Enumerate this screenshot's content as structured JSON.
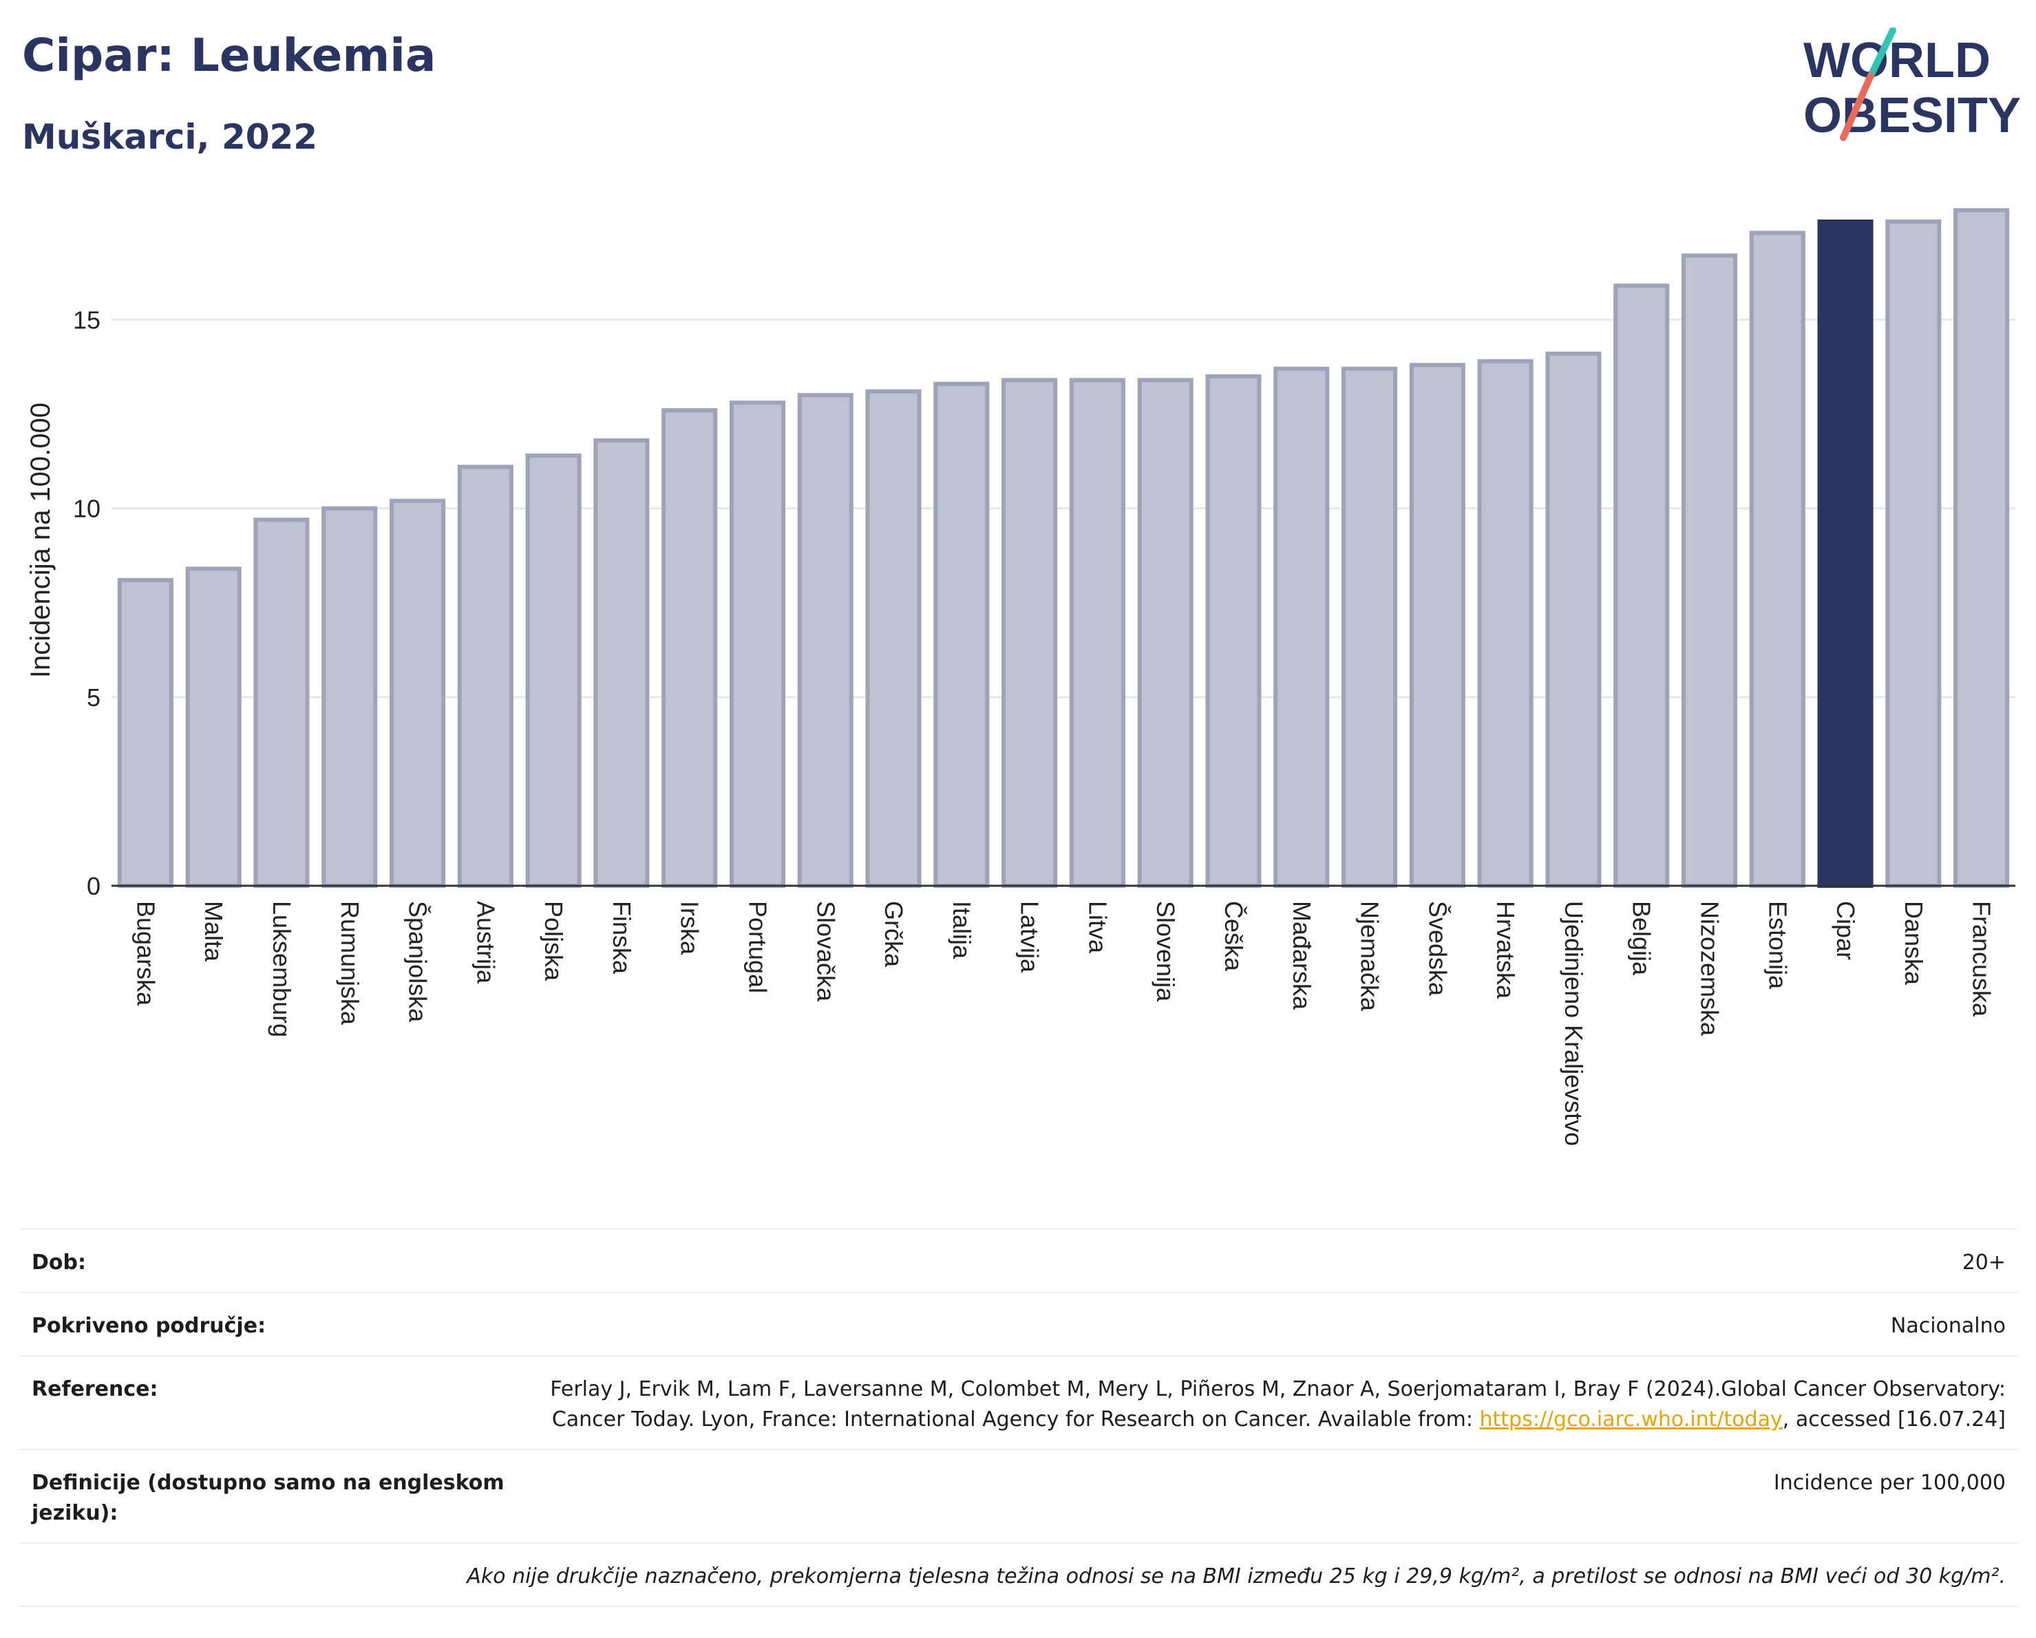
{
  "header": {
    "title": "Cipar: Leukemia",
    "subtitle": "Muškarci, 2022",
    "logo_line1": "WORLD",
    "logo_line2": "OBESITY"
  },
  "colors": {
    "highlight": "#2b3561",
    "bar": "#bfc2d0",
    "bar_edge": "#9ea3bc",
    "title": "#2b3561",
    "link": "#e8a400"
  },
  "chart_data": {
    "type": "bar",
    "ylabel": "Incidencija na 100.000",
    "ylim": [
      0,
      18
    ],
    "yticks": [
      0,
      5,
      10,
      15
    ],
    "grid": true,
    "highlight_category": "Cipar",
    "categories": [
      "Bugarska",
      "Malta",
      "Luksemburg",
      "Rumunjska",
      "Španjolska",
      "Austrija",
      "Poljska",
      "Finska",
      "Irska",
      "Portugal",
      "Slovačka",
      "Grčka",
      "Italija",
      "Latvija",
      "Litva",
      "Slovenija",
      "Češka",
      "Mađarska",
      "Njemačka",
      "Švedska",
      "Hrvatska",
      "Ujedinjeno Kraljevstvo",
      "Belgija",
      "Nizozemska",
      "Estonija",
      "Cipar",
      "Danska",
      "Francuska"
    ],
    "values": [
      8.1,
      8.4,
      9.7,
      10.0,
      10.2,
      11.1,
      11.4,
      11.8,
      12.6,
      12.8,
      13.0,
      13.1,
      13.3,
      13.4,
      13.4,
      13.4,
      13.5,
      13.7,
      13.7,
      13.8,
      13.9,
      14.1,
      15.9,
      16.7,
      17.3,
      17.6,
      17.6,
      17.9
    ]
  },
  "info": {
    "age_label": "Dob:",
    "age_value": "20+",
    "coverage_label": "Pokriveno područje:",
    "coverage_value": "Nacionalno",
    "reference_label": "Reference:",
    "reference_text_1": "Ferlay J, Ervik M, Lam F, Laversanne M, Colombet M, Mery L, Piñeros M, Znaor A, Soerjomataram I, Bray F (2024).Global Cancer Observatory: Cancer Today. Lyon, France: International Agency for Research on Cancer. Available from: ",
    "reference_link": "https://gco.iarc.who.int/today",
    "reference_text_2": ", accessed [16.07.24]",
    "definitions_label": "Definicije (dostupno samo na engleskom jeziku):",
    "definitions_value": "Incidence per 100,000",
    "note": "Ako nije drukčije naznačeno, prekomjerna tjelesna težina odnosi se na BMI između 25 kg i 29,9 kg/m², a pretilost se odnosi na BMI veći od 30 kg/m²."
  }
}
